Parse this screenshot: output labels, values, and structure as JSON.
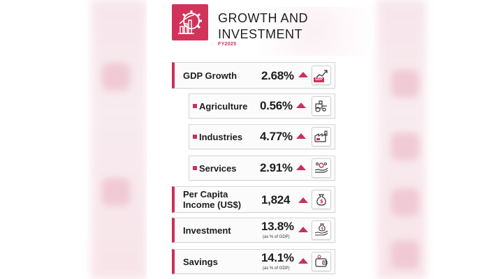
{
  "header": {
    "title_line1": "GROWTH AND",
    "title_line2": "INVESTMENT",
    "fiscal_year": "FY2025",
    "logo_icon": "growth-gear-chart-icon"
  },
  "colors": {
    "accent": "#c9305a",
    "logo_bg": "#d0345a",
    "text": "#1d1d1d"
  },
  "rows": [
    {
      "label": "GDP Growth",
      "value": "2.68%",
      "trend": "up",
      "icon": "gdp-chart-icon",
      "icon_tag": "GDP"
    },
    {
      "label": "Agriculture",
      "value": "0.56%",
      "trend": "up",
      "icon": "tractor-icon"
    },
    {
      "label": "Industries",
      "value": "4.77%",
      "trend": "up",
      "icon": "factory-icon"
    },
    {
      "label": "Services",
      "value": "2.91%",
      "trend": "up",
      "icon": "hand-gear-icon"
    },
    {
      "label_line1": "Per Capita",
      "label_line2": "Income (US$)",
      "value": "1,824",
      "trend": "up",
      "icon": "money-bag-icon"
    },
    {
      "label": "Investment",
      "value": "13.8%",
      "note": "(as % of GDP)",
      "trend": "up",
      "icon": "hand-money-bag-icon"
    },
    {
      "label": "Savings",
      "value": "14.1%",
      "note": "(as % of GDP)",
      "trend": "up",
      "icon": "wallet-icon"
    }
  ]
}
